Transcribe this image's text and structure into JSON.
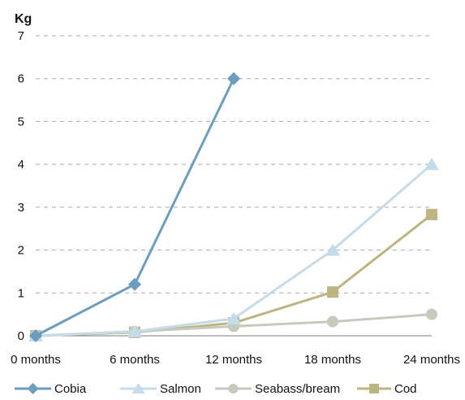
{
  "chart_data": {
    "type": "line",
    "title": "",
    "xlabel": "",
    "ylabel": "Kg",
    "categories": [
      "0 months",
      "6 months",
      "12 months",
      "18 months",
      "24 months"
    ],
    "ylim": [
      0,
      7
    ],
    "yticks": [
      0,
      1,
      2,
      3,
      4,
      5,
      6,
      7
    ],
    "grid": true,
    "legend_position": "bottom",
    "series": [
      {
        "name": "Cobia",
        "color": "#6a9ec0",
        "marker": "diamond",
        "values": [
          0,
          1.2,
          6.0,
          null,
          null
        ]
      },
      {
        "name": "Salmon",
        "color": "#c4dcea",
        "marker": "triangle",
        "values": [
          0,
          0.1,
          0.4,
          2.0,
          4.0
        ]
      },
      {
        "name": "Seabass/bream",
        "color": "#c8c9bb",
        "marker": "circle",
        "values": [
          0,
          0.1,
          0.22,
          0.33,
          0.5
        ]
      },
      {
        "name": "Cod",
        "color": "#bdb580",
        "marker": "square",
        "values": [
          0,
          0.08,
          0.3,
          1.02,
          2.83
        ]
      }
    ]
  }
}
